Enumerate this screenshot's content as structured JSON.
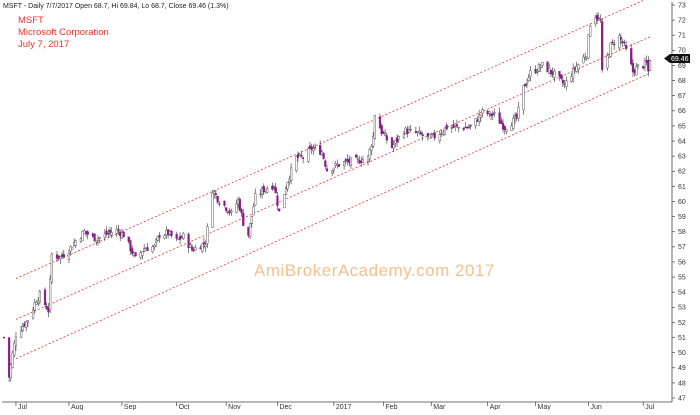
{
  "header": {
    "info_line": "MSFT - Daily 7/7/2017 Open 68.7, Hi 69.84, Lo 68.7, Close 69.46 (1.3%)",
    "ticker": "MSFT",
    "company": "Microsoft Corporation",
    "date": "July 7, 2017"
  },
  "watermark": "AmiBrokerAcademy.com  2017",
  "last_price_tag": "69.46",
  "colors": {
    "up_candle": "#ffffff",
    "down_candle": "#8a1a8a",
    "wick": "#333333",
    "channel_line": "#e8322e",
    "title_text": "#e8322e",
    "price_tag_bg": "#111111"
  },
  "chart_data": {
    "type": "candlestick",
    "title": "MSFT",
    "subtitle": "Microsoft Corporation, July 7, 2017",
    "y_axis": {
      "position": "right",
      "range": [
        47,
        73
      ],
      "ticks": [
        47,
        48,
        49,
        50,
        51,
        52,
        53,
        54,
        55,
        56,
        57,
        58,
        59,
        60,
        61,
        62,
        63,
        64,
        65,
        66,
        67,
        68,
        69,
        70,
        71,
        72,
        73
      ]
    },
    "x_axis": {
      "range": [
        "2016-06-24",
        "2017-07-14"
      ],
      "ticks": [
        {
          "date": "2016-07-01",
          "label": "Jul"
        },
        {
          "date": "2016-08-01",
          "label": "Aug"
        },
        {
          "date": "2016-09-01",
          "label": "Sep"
        },
        {
          "date": "2016-10-03",
          "label": "Oct"
        },
        {
          "date": "2016-11-01",
          "label": "Nov"
        },
        {
          "date": "2016-12-01",
          "label": "Dec"
        },
        {
          "date": "2017-01-03",
          "label": "2017"
        },
        {
          "date": "2017-02-01",
          "label": "Feb"
        },
        {
          "date": "2017-03-01",
          "label": "Mar"
        },
        {
          "date": "2017-04-03",
          "label": "Apr"
        },
        {
          "date": "2017-05-01",
          "label": "May"
        },
        {
          "date": "2017-06-01",
          "label": "Jun"
        },
        {
          "date": "2017-07-03",
          "label": "Jul"
        }
      ]
    },
    "grid": false,
    "last_close": 69.46,
    "price_path": [
      [
        "2016-06-24",
        51.0
      ],
      [
        "2016-06-27",
        48.4
      ],
      [
        "2016-06-29",
        49.9
      ],
      [
        "2016-07-01",
        51.2
      ],
      [
        "2016-07-08",
        52.2
      ],
      [
        "2016-07-13",
        53.5
      ],
      [
        "2016-07-15",
        53.8
      ],
      [
        "2016-07-20",
        52.8
      ],
      [
        "2016-07-22",
        56.5
      ],
      [
        "2016-07-27",
        56.3
      ],
      [
        "2016-08-01",
        56.8
      ],
      [
        "2016-08-05",
        57.4
      ],
      [
        "2016-08-10",
        58.0
      ],
      [
        "2016-08-15",
        57.6
      ],
      [
        "2016-08-19",
        57.6
      ],
      [
        "2016-08-24",
        57.9
      ],
      [
        "2016-08-29",
        58.1
      ],
      [
        "2016-09-02",
        57.8
      ],
      [
        "2016-09-09",
        56.2
      ],
      [
        "2016-09-14",
        56.9
      ],
      [
        "2016-09-20",
        57.0
      ],
      [
        "2016-09-23",
        57.8
      ],
      [
        "2016-09-28",
        57.9
      ],
      [
        "2016-10-03",
        57.4
      ],
      [
        "2016-10-07",
        57.7
      ],
      [
        "2016-10-12",
        56.8
      ],
      [
        "2016-10-17",
        57.1
      ],
      [
        "2016-10-20",
        57.3
      ],
      [
        "2016-10-24",
        60.8
      ],
      [
        "2016-10-27",
        60.2
      ],
      [
        "2016-11-01",
        59.6
      ],
      [
        "2016-11-04",
        59.2
      ],
      [
        "2016-11-08",
        60.1
      ],
      [
        "2016-11-11",
        58.6
      ],
      [
        "2016-11-14",
        57.8
      ],
      [
        "2016-11-18",
        60.3
      ],
      [
        "2016-11-23",
        60.8
      ],
      [
        "2016-11-29",
        61.1
      ],
      [
        "2016-12-02",
        59.3
      ],
      [
        "2016-12-07",
        61.4
      ],
      [
        "2016-12-12",
        62.9
      ],
      [
        "2016-12-16",
        62.9
      ],
      [
        "2016-12-21",
        63.5
      ],
      [
        "2016-12-27",
        63.3
      ],
      [
        "2016-12-30",
        62.1
      ],
      [
        "2017-01-05",
        62.4
      ],
      [
        "2017-01-10",
        62.6
      ],
      [
        "2017-01-17",
        62.7
      ],
      [
        "2017-01-23",
        62.9
      ],
      [
        "2017-01-26",
        64.3
      ],
      [
        "2017-01-27",
        65.8
      ],
      [
        "2017-01-31",
        64.6
      ],
      [
        "2017-02-06",
        63.6
      ],
      [
        "2017-02-13",
        64.7
      ],
      [
        "2017-02-21",
        64.5
      ],
      [
        "2017-02-27",
        64.2
      ],
      [
        "2017-03-03",
        64.3
      ],
      [
        "2017-03-10",
        64.9
      ],
      [
        "2017-03-17",
        64.9
      ],
      [
        "2017-03-24",
        64.9
      ],
      [
        "2017-03-31",
        65.9
      ],
      [
        "2017-04-07",
        65.7
      ],
      [
        "2017-04-13",
        64.9
      ],
      [
        "2017-04-20",
        65.5
      ],
      [
        "2017-04-24",
        67.5
      ],
      [
        "2017-04-28",
        68.5
      ],
      [
        "2017-05-05",
        69.0
      ],
      [
        "2017-05-12",
        68.4
      ],
      [
        "2017-05-18",
        67.7
      ],
      [
        "2017-05-24",
        68.8
      ],
      [
        "2017-05-31",
        69.8
      ],
      [
        "2017-06-02",
        71.8
      ],
      [
        "2017-06-05",
        72.3
      ],
      [
        "2017-06-08",
        71.9
      ],
      [
        "2017-06-09",
        68.5
      ],
      [
        "2017-06-14",
        70.3
      ],
      [
        "2017-06-19",
        70.9
      ],
      [
        "2017-06-22",
        70.3
      ],
      [
        "2017-06-27",
        68.6
      ],
      [
        "2017-06-30",
        68.9
      ],
      [
        "2017-07-05",
        69.1
      ],
      [
        "2017-07-06",
        68.6
      ],
      [
        "2017-07-07",
        69.46
      ]
    ],
    "trend_channel": [
      {
        "name": "upper",
        "start": [
          "2016-07-01",
          54.9
        ],
        "end": [
          "2017-07-07",
          73.5
        ]
      },
      {
        "name": "middle",
        "start": [
          "2016-07-01",
          52.2
        ],
        "end": [
          "2017-07-07",
          70.9
        ]
      },
      {
        "name": "lower",
        "start": [
          "2016-07-01",
          49.6
        ],
        "end": [
          "2017-07-07",
          68.5
        ]
      }
    ]
  }
}
